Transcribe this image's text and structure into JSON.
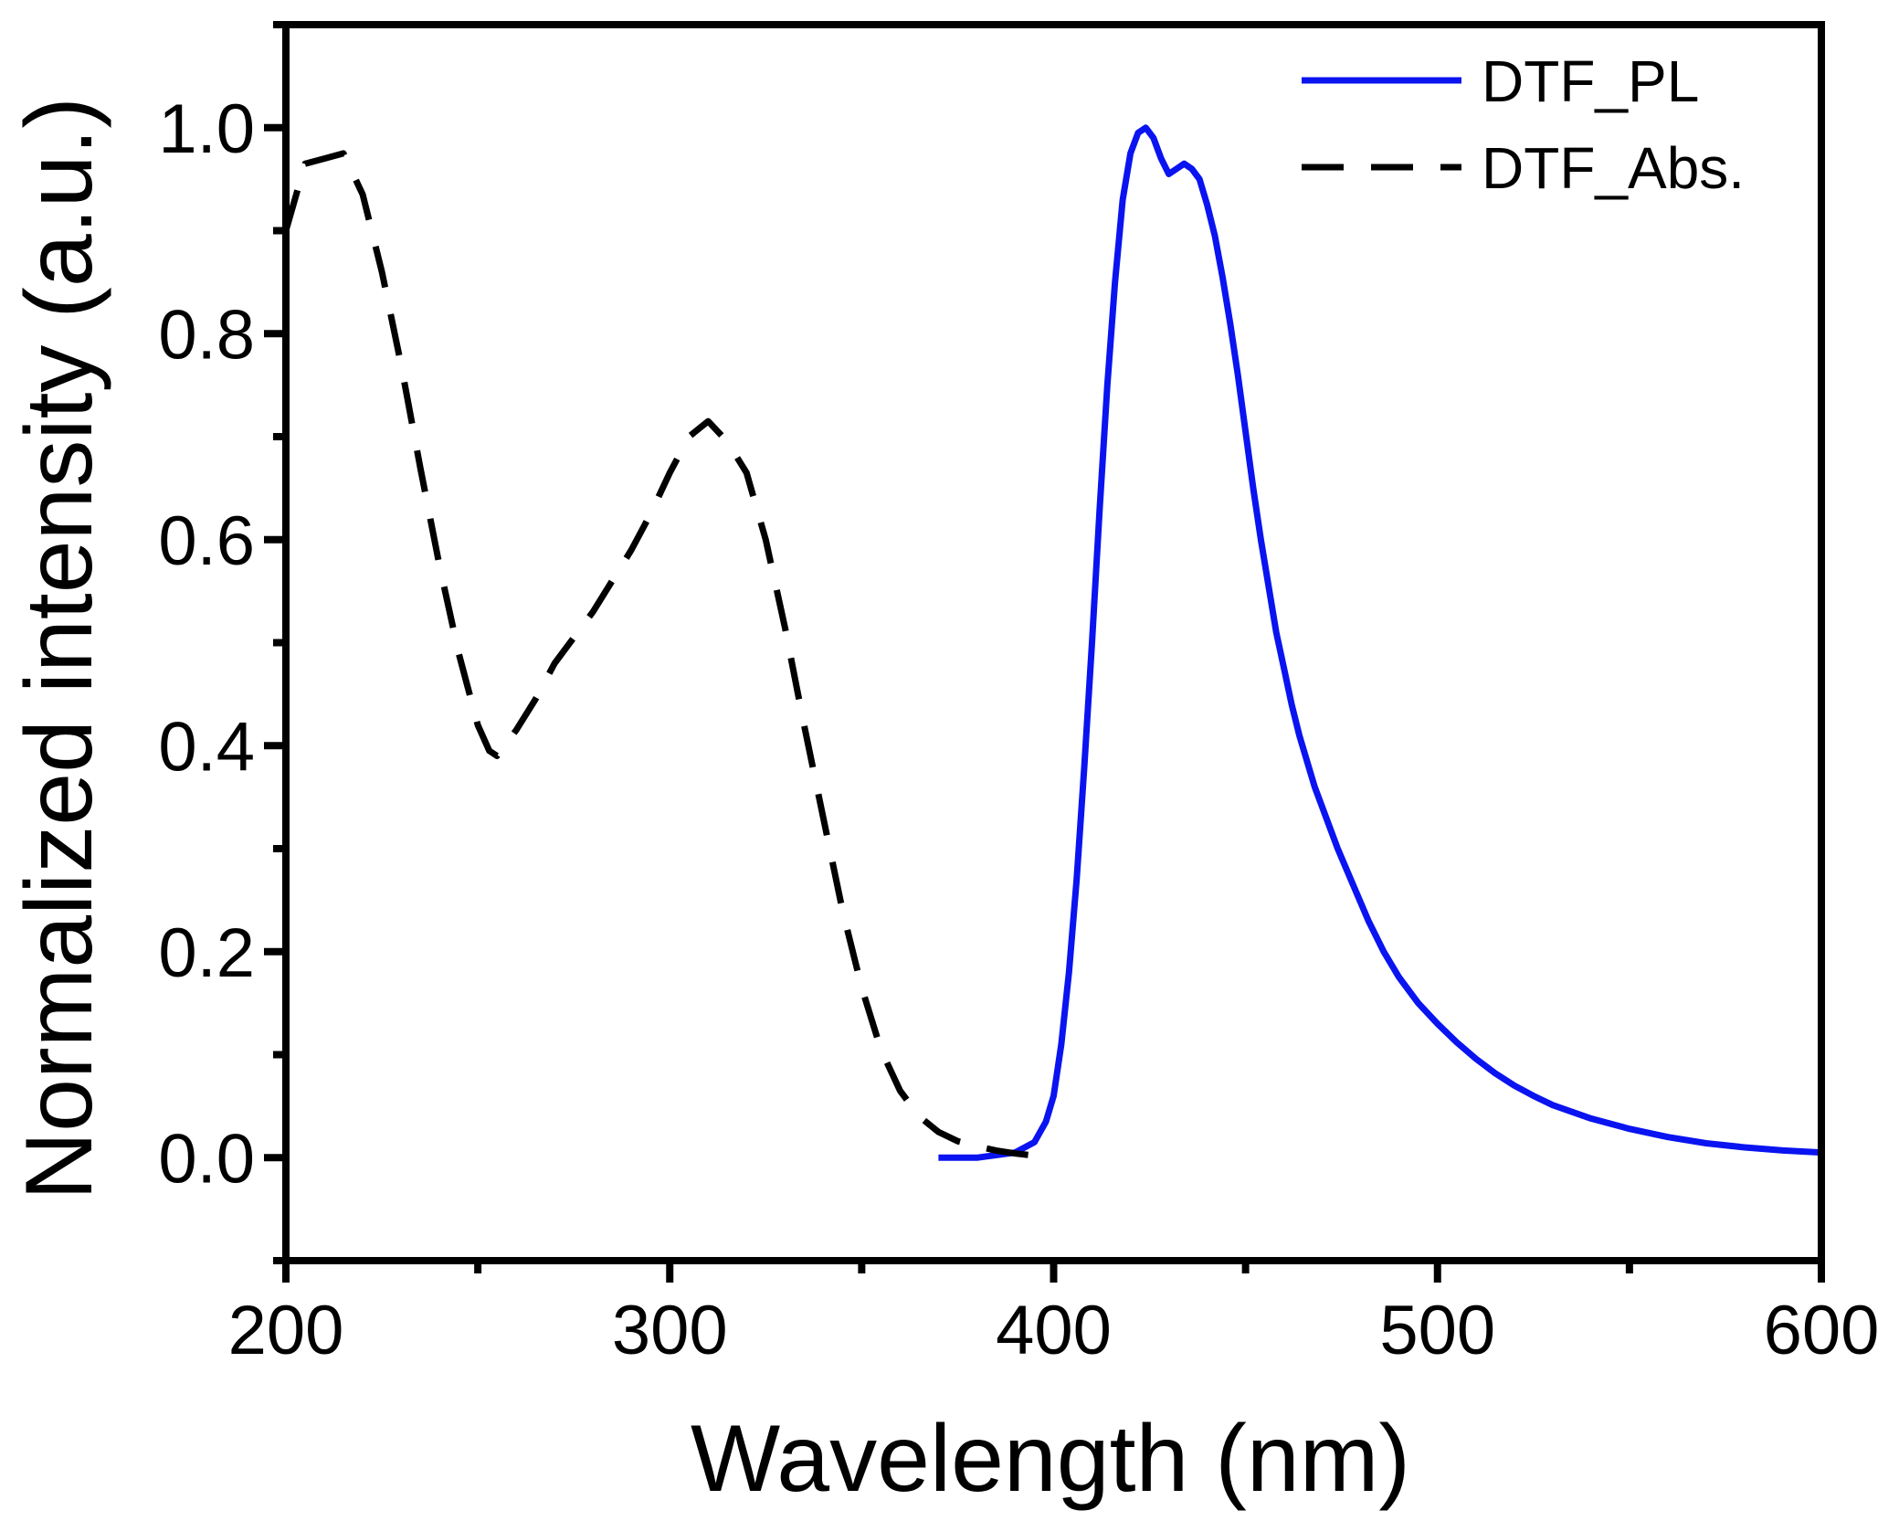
{
  "chart_data": {
    "type": "line",
    "title": "",
    "xlabel": "Wavelength (nm)",
    "ylabel": "Normalized intensity (a.u.)",
    "xlim": [
      200,
      600
    ],
    "ylim": [
      -0.1,
      1.1
    ],
    "xticks": [
      200,
      300,
      400,
      500,
      600
    ],
    "xtick_labels": [
      "200",
      "300",
      "400",
      "500",
      "600"
    ],
    "yticks": [
      0.0,
      0.2,
      0.4,
      0.6,
      0.8,
      1.0
    ],
    "ytick_labels": [
      "0.0",
      "0.2",
      "0.4",
      "0.6",
      "0.8",
      "1.0"
    ],
    "x_minor_ticks": [
      250,
      350,
      450,
      550
    ],
    "y_minor_ticks": [
      -0.1,
      0.1,
      0.3,
      0.5,
      0.7,
      0.9,
      1.1
    ],
    "grid": false,
    "legend_position": "top-right",
    "series": [
      {
        "name": "DTF_PL",
        "color": "#0a14f0",
        "style": "solid",
        "x": [
          370,
          380,
          390,
          395,
          398,
          400,
          402,
          404,
          406,
          408,
          410,
          412,
          414,
          416,
          418,
          420,
          422,
          424,
          426,
          428,
          430,
          432,
          434,
          436,
          438,
          440,
          442,
          444,
          446,
          448,
          450,
          452,
          454,
          456,
          458,
          460,
          462,
          464,
          466,
          468,
          470,
          474,
          478,
          482,
          486,
          490,
          495,
          500,
          505,
          510,
          515,
          520,
          525,
          530,
          540,
          550,
          560,
          570,
          580,
          590,
          600
        ],
        "y": [
          0.0,
          0.0,
          0.005,
          0.015,
          0.035,
          0.06,
          0.11,
          0.18,
          0.27,
          0.38,
          0.5,
          0.63,
          0.75,
          0.85,
          0.93,
          0.975,
          0.995,
          1.0,
          0.99,
          0.97,
          0.955,
          0.96,
          0.965,
          0.96,
          0.95,
          0.925,
          0.895,
          0.855,
          0.81,
          0.76,
          0.705,
          0.65,
          0.6,
          0.555,
          0.51,
          0.475,
          0.44,
          0.41,
          0.385,
          0.36,
          0.34,
          0.3,
          0.265,
          0.23,
          0.2,
          0.175,
          0.15,
          0.13,
          0.112,
          0.096,
          0.082,
          0.07,
          0.06,
          0.051,
          0.038,
          0.028,
          0.02,
          0.014,
          0.01,
          0.007,
          0.005
        ]
      },
      {
        "name": "DTF_Abs.",
        "color": "#000000",
        "style": "dashed",
        "x": [
          200,
          205,
          210,
          215,
          220,
          225,
          230,
          235,
          240,
          245,
          250,
          253,
          255,
          260,
          265,
          270,
          280,
          290,
          295,
          300,
          305,
          310,
          315,
          320,
          325,
          330,
          335,
          340,
          345,
          350,
          355,
          360,
          365,
          370,
          375,
          380,
          385,
          390,
          395,
          400
        ],
        "y": [
          0.9,
          0.965,
          0.97,
          0.975,
          0.935,
          0.86,
          0.77,
          0.67,
          0.575,
          0.49,
          0.42,
          0.395,
          0.39,
          0.415,
          0.445,
          0.48,
          0.53,
          0.59,
          0.625,
          0.665,
          0.7,
          0.715,
          0.695,
          0.665,
          0.6,
          0.515,
          0.42,
          0.33,
          0.24,
          0.165,
          0.105,
          0.065,
          0.04,
          0.025,
          0.016,
          0.011,
          0.007,
          0.004,
          0.002,
          0.001
        ]
      }
    ]
  }
}
